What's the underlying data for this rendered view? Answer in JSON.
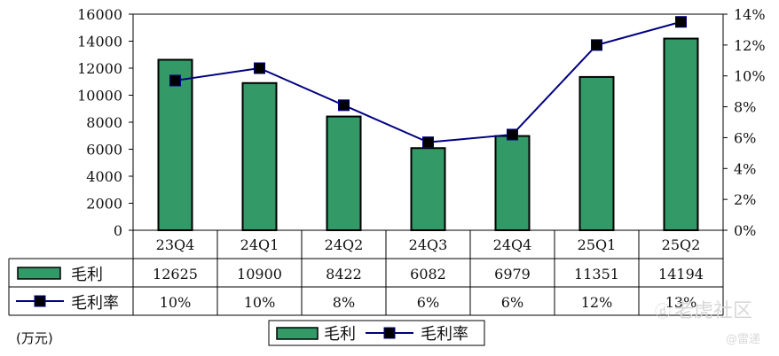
{
  "chart_data": {
    "type": "bar",
    "categories": [
      "23Q4",
      "24Q1",
      "24Q2",
      "24Q3",
      "24Q4",
      "25Q1",
      "25Q2"
    ],
    "series": [
      {
        "name": "毛利",
        "type": "bar",
        "axis": "left",
        "values": [
          12625,
          10900,
          8422,
          6082,
          6979,
          11351,
          14194
        ],
        "color": "#339966"
      },
      {
        "name": "毛利率",
        "type": "line",
        "axis": "right",
        "values": [
          9.7,
          10.5,
          8.1,
          5.7,
          6.2,
          12.0,
          13.5
        ],
        "color": "#000080"
      }
    ],
    "table_rows": [
      {
        "label": "毛利",
        "cells": [
          "12625",
          "10900",
          "8422",
          "6082",
          "6979",
          "11351",
          "14194"
        ]
      },
      {
        "label": "毛利率",
        "cells": [
          "10%",
          "10%",
          "8%",
          "6%",
          "6%",
          "12%",
          "13%"
        ]
      }
    ],
    "y_left": {
      "min": 0,
      "max": 16000,
      "step": 2000,
      "ticks": [
        "0",
        "2000",
        "4000",
        "6000",
        "8000",
        "10000",
        "12000",
        "14000",
        "16000"
      ]
    },
    "y_right": {
      "min": 0,
      "max": 14,
      "step": 2,
      "ticks": [
        "0%",
        "2%",
        "4%",
        "6%",
        "8%",
        "10%",
        "12%",
        "14%"
      ]
    },
    "unit_label": "(万元)",
    "legend": {
      "placement": "bottom-center",
      "items": [
        "毛利",
        "毛利率"
      ]
    },
    "grid": false,
    "watermark": {
      "text": "老虎社区",
      "handle": "@雷递"
    }
  }
}
